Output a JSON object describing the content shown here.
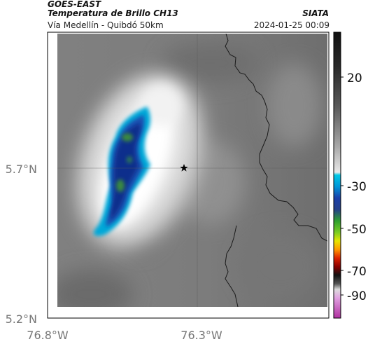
{
  "header": {
    "satellite": "GOES-EAST",
    "product": "Temperatura de Brillo CH13",
    "agency": "SIATA",
    "route": "Vía Medellín - Quibdó 50km",
    "datetime": "2024-01-25 00:09"
  },
  "axes": {
    "lat_labels": [
      "5.7°N",
      "5.2°N"
    ],
    "lon_labels": [
      "76.8°W",
      "76.3°W"
    ]
  },
  "colorbar": {
    "ticks": [
      "20",
      "-30",
      "-50",
      "-70",
      "-90"
    ],
    "colors": {
      "warm_top": "#111111",
      "warm_bottom": "#e8e8e8",
      "cyan": "#00c8e6",
      "blue": "#1a3faa",
      "green": "#2ea02e",
      "yellow": "#e6e600",
      "red": "#dd2200",
      "magenta": "#c040b0"
    }
  },
  "map": {
    "marker": "star-icon",
    "colors": {
      "cloud_bright": "#ffffff",
      "cloud_dim": "#5f5f5f",
      "border": "#1a1a1a",
      "cold_core": "#0a2e8c",
      "cold_green": "#3a8a40",
      "cold_edge": "#00a8d8"
    }
  }
}
